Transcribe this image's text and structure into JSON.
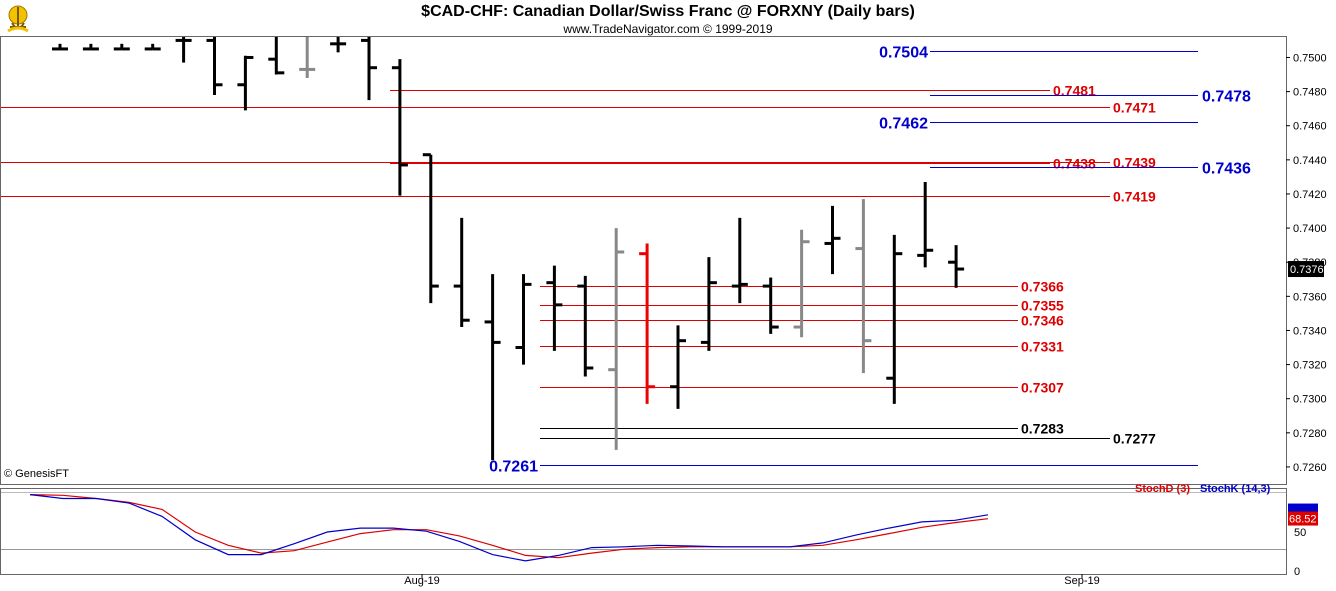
{
  "header": {
    "title": "$CAD-CHF:  Canadian Dollar/Swiss Franc @ FORXNY  (Daily bars)",
    "subtitle": "www.TradeNavigator.com © 1999-2019",
    "credit": "© GenesisFT"
  },
  "colors": {
    "up_bar": "#000000",
    "neutral_bar": "#888888",
    "highlight_bar": "#ee0000",
    "red_level": "#dd0000",
    "blue_level": "#0000cc",
    "black_level": "#000000",
    "stoch_d": "#dd0000",
    "stoch_k": "#0000cc"
  },
  "chart_data": {
    "type": "ohlc",
    "price_axis": {
      "ylim": [
        0.725,
        0.7512
      ],
      "ticks": [
        "0.7260",
        "0.7280",
        "0.7300",
        "0.7320",
        "0.7340",
        "0.7360",
        "0.7380",
        "0.7400",
        "0.7420",
        "0.7440",
        "0.7460",
        "0.7480",
        "0.7500"
      ],
      "last_price": "0.7376"
    },
    "x_labels": [
      "Aug-19",
      "Sep-19"
    ],
    "bars": [
      {
        "o": 0.7505,
        "h": 0.7508,
        "l": 0.7505,
        "c": 0.7505,
        "color": "up"
      },
      {
        "o": 0.7505,
        "h": 0.7508,
        "l": 0.7505,
        "c": 0.7505,
        "color": "up"
      },
      {
        "o": 0.7505,
        "h": 0.7508,
        "l": 0.7505,
        "c": 0.7505,
        "color": "up"
      },
      {
        "o": 0.7505,
        "h": 0.7508,
        "l": 0.7505,
        "c": 0.7505,
        "color": "up"
      },
      {
        "o": 0.751,
        "h": 0.7512,
        "l": 0.7497,
        "c": 0.751,
        "color": "up"
      },
      {
        "o": 0.751,
        "h": 0.7512,
        "l": 0.7478,
        "c": 0.7484,
        "color": "up"
      },
      {
        "o": 0.7484,
        "h": 0.7501,
        "l": 0.7469,
        "c": 0.75,
        "color": "up"
      },
      {
        "o": 0.7499,
        "h": 0.7512,
        "l": 0.749,
        "c": 0.7491,
        "color": "up"
      },
      {
        "o": 0.7493,
        "h": 0.7512,
        "l": 0.7488,
        "c": 0.7493,
        "color": "neutral"
      },
      {
        "o": 0.7508,
        "h": 0.7512,
        "l": 0.7503,
        "c": 0.7508,
        "color": "up"
      },
      {
        "o": 0.751,
        "h": 0.7512,
        "l": 0.7475,
        "c": 0.7494,
        "color": "up"
      },
      {
        "o": 0.7494,
        "h": 0.7499,
        "l": 0.7419,
        "c": 0.7437,
        "color": "up"
      },
      {
        "o": 0.7443,
        "h": 0.7443,
        "l": 0.7356,
        "c": 0.7366,
        "color": "up"
      },
      {
        "o": 0.7366,
        "h": 0.7406,
        "l": 0.7342,
        "c": 0.7346,
        "color": "up"
      },
      {
        "o": 0.7345,
        "h": 0.7373,
        "l": 0.7264,
        "c": 0.7333,
        "color": "up"
      },
      {
        "o": 0.733,
        "h": 0.7373,
        "l": 0.732,
        "c": 0.7367,
        "color": "up"
      },
      {
        "o": 0.7368,
        "h": 0.7378,
        "l": 0.7328,
        "c": 0.7355,
        "color": "up"
      },
      {
        "o": 0.7366,
        "h": 0.7372,
        "l": 0.7313,
        "c": 0.7318,
        "color": "up"
      },
      {
        "o": 0.7317,
        "h": 0.74,
        "l": 0.727,
        "c": 0.7386,
        "color": "neutral"
      },
      {
        "o": 0.7385,
        "h": 0.7391,
        "l": 0.7297,
        "c": 0.7307,
        "color": "highlight"
      },
      {
        "o": 0.7307,
        "h": 0.7343,
        "l": 0.7294,
        "c": 0.7334,
        "color": "up"
      },
      {
        "o": 0.7333,
        "h": 0.7383,
        "l": 0.7328,
        "c": 0.7368,
        "color": "up"
      },
      {
        "o": 0.7366,
        "h": 0.7406,
        "l": 0.7356,
        "c": 0.7367,
        "color": "up"
      },
      {
        "o": 0.7366,
        "h": 0.7371,
        "l": 0.7338,
        "c": 0.7342,
        "color": "up"
      },
      {
        "o": 0.7342,
        "h": 0.7399,
        "l": 0.7336,
        "c": 0.7392,
        "color": "neutral"
      },
      {
        "o": 0.7391,
        "h": 0.7413,
        "l": 0.7373,
        "c": 0.7394,
        "color": "up"
      },
      {
        "o": 0.7388,
        "h": 0.7417,
        "l": 0.7315,
        "c": 0.7334,
        "color": "neutral"
      },
      {
        "o": 0.7312,
        "h": 0.7396,
        "l": 0.7297,
        "c": 0.7385,
        "color": "up"
      },
      {
        "o": 0.7384,
        "h": 0.7427,
        "l": 0.7377,
        "c": 0.7387,
        "color": "up"
      },
      {
        "o": 0.738,
        "h": 0.739,
        "l": 0.7365,
        "c": 0.7376,
        "color": "up"
      }
    ],
    "levels": [
      {
        "value": 0.7504,
        "label": "0.7504",
        "color": "blue"
      },
      {
        "value": 0.7481,
        "label": "0.7481",
        "color": "red"
      },
      {
        "value": 0.7478,
        "label": "0.7478",
        "color": "blue"
      },
      {
        "value": 0.7471,
        "label": "0.7471",
        "color": "red"
      },
      {
        "value": 0.7462,
        "label": "0.7462",
        "color": "blue"
      },
      {
        "value": 0.7439,
        "label": "0.7439",
        "color": "red"
      },
      {
        "value": 0.7438,
        "label": "0.7438",
        "color": "red"
      },
      {
        "value": 0.7436,
        "label": "0.7436",
        "color": "blue"
      },
      {
        "value": 0.7419,
        "label": "0.7419",
        "color": "red"
      },
      {
        "value": 0.7366,
        "label": "0.7366",
        "color": "red"
      },
      {
        "value": 0.7355,
        "label": "0.7355",
        "color": "red"
      },
      {
        "value": 0.7346,
        "label": "0.7346",
        "color": "red"
      },
      {
        "value": 0.7331,
        "label": "0.7331",
        "color": "red"
      },
      {
        "value": 0.7307,
        "label": "0.7307",
        "color": "red"
      },
      {
        "value": 0.7283,
        "label": "0.7283",
        "color": "black"
      },
      {
        "value": 0.7277,
        "label": "0.7277",
        "color": "black"
      },
      {
        "value": 0.7261,
        "label": "0.7261",
        "color": "blue"
      }
    ],
    "stochastic": {
      "legend_d": "StochD (3)",
      "legend_k": "StochK (14,3)",
      "last_value": "68.52",
      "ticks": [
        "50",
        "0"
      ],
      "ylim": [
        0,
        100
      ],
      "k": [
        98,
        93,
        93,
        87,
        70,
        40,
        21,
        21,
        35,
        50,
        55,
        55,
        51,
        38,
        21,
        13,
        20,
        30,
        31,
        33,
        32,
        31,
        31,
        31,
        36,
        46,
        55,
        63,
        65,
        72
      ],
      "d": [
        98,
        97,
        93,
        88,
        79,
        50,
        33,
        23,
        26,
        37,
        48,
        53,
        53,
        45,
        33,
        20,
        17,
        23,
        28,
        30,
        31,
        31,
        31,
        31,
        33,
        40,
        48,
        56,
        62,
        67
      ]
    }
  }
}
